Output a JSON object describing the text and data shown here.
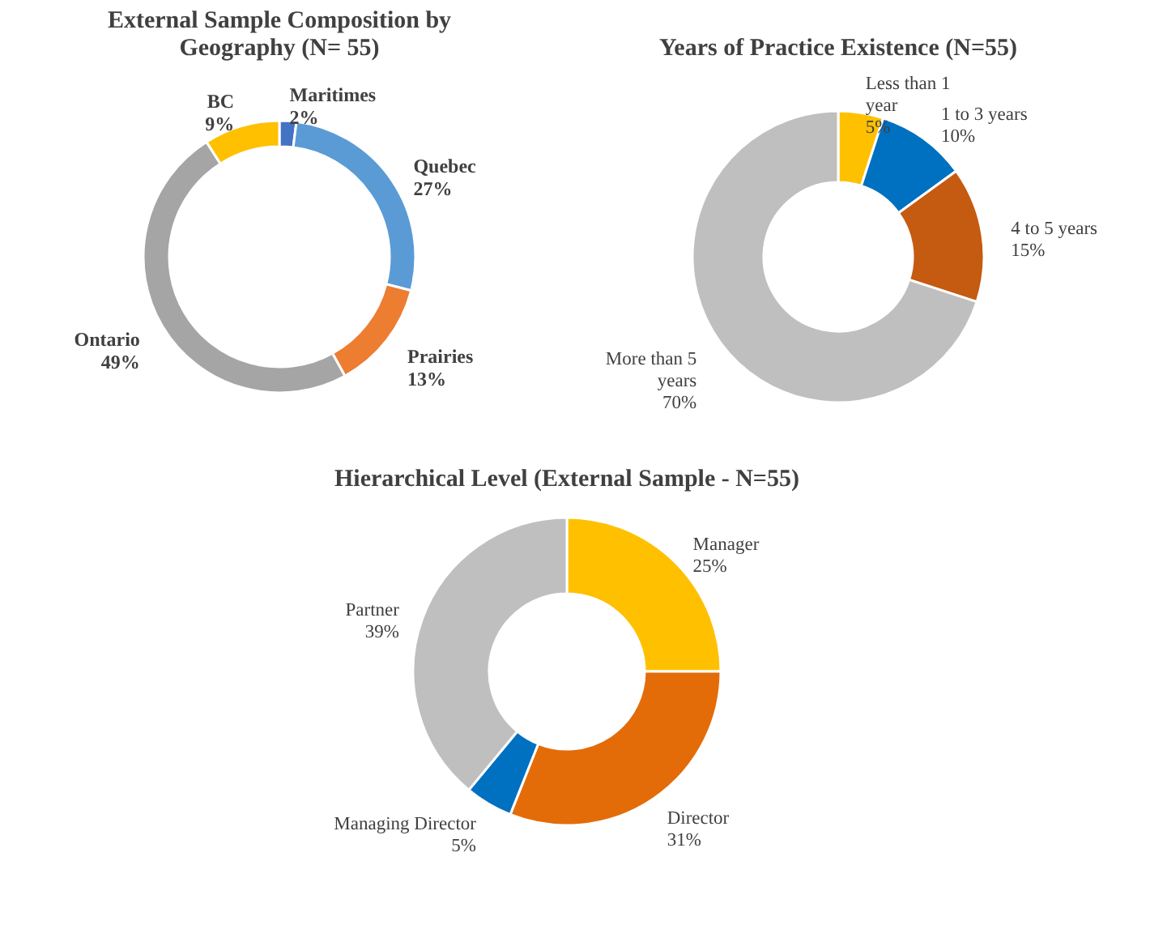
{
  "chart_data": [
    {
      "type": "donut",
      "title": "External Sample Composition by Geography (N= 55)",
      "categories": [
        "Maritimes",
        "Quebec",
        "Prairies",
        "Ontario",
        "BC"
      ],
      "values": [
        2,
        27,
        13,
        49,
        9
      ],
      "value_labels": [
        "2%",
        "27%",
        "13%",
        "49%",
        "9%"
      ],
      "colors": [
        "#4472c4",
        "#5b9bd5",
        "#ed7d31",
        "#a5a5a5",
        "#ffc000"
      ]
    },
    {
      "type": "donut",
      "title": "Years of Practice Existence (N=55)",
      "categories": [
        "Less than 1 year",
        "1 to 3 years",
        "4 to 5 years",
        "More than 5 years"
      ],
      "values": [
        5,
        10,
        15,
        70
      ],
      "value_labels": [
        "5%",
        "10%",
        "15%",
        "70%"
      ],
      "colors": [
        "#ffc000",
        "#0070c0",
        "#c55a11",
        "#bfbfbf"
      ]
    },
    {
      "type": "donut",
      "title": "Hierarchical Level (External Sample - N=55)",
      "categories": [
        "Manager",
        "Director",
        "Managing Director",
        "Partner"
      ],
      "values": [
        25,
        31,
        5,
        39
      ],
      "value_labels": [
        "25%",
        "31%",
        "5%",
        "39%"
      ],
      "colors": [
        "#ffc000",
        "#e36c09",
        "#0070c0",
        "#bfbfbf"
      ]
    }
  ]
}
